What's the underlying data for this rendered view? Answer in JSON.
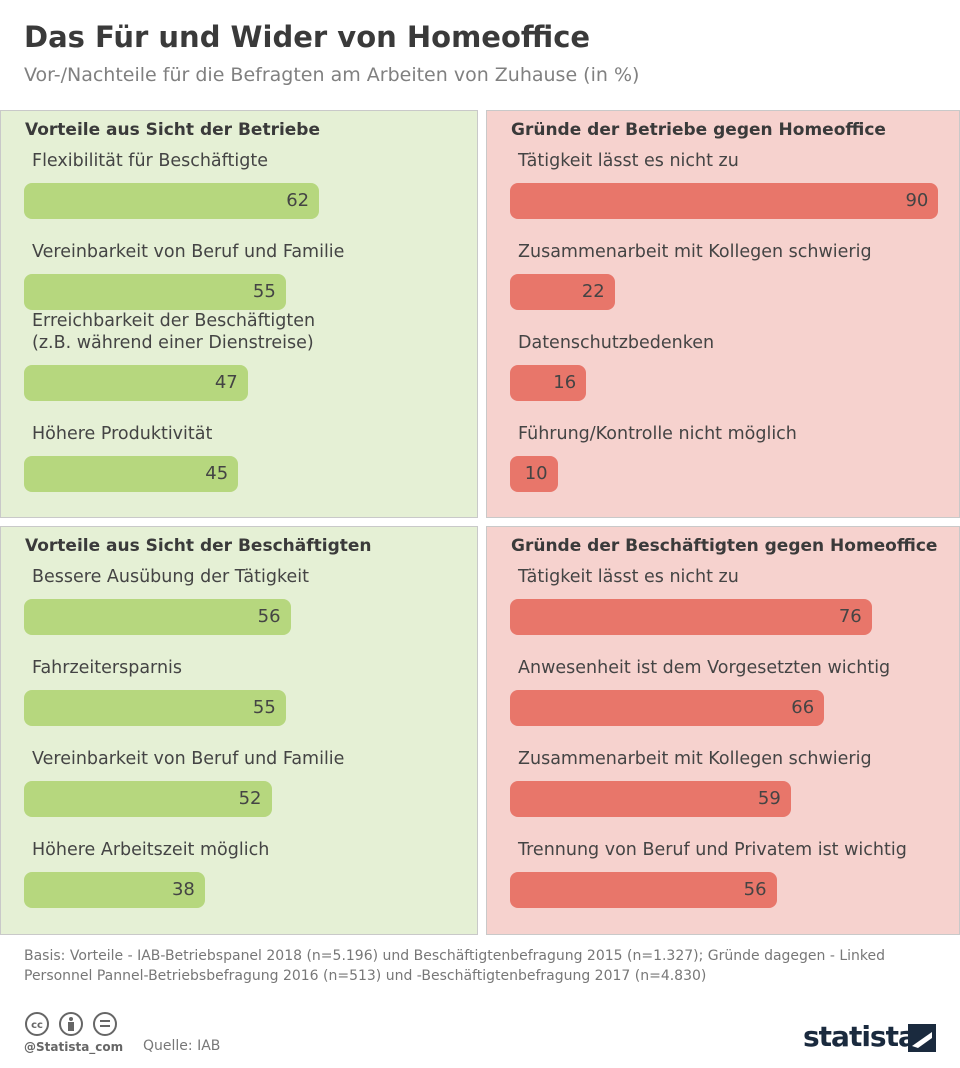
{
  "title": "Das Für und Wider von Homeoffice",
  "subtitle": "Vor-/Nachteile für die Befragten am Arbeiten von Zuhause (in %)",
  "note": "Basis: Vorteile - IAB-Betriebspanel 2018 (n=5.196) und Beschäftigtenbefragung 2015 (n=1.327); Gründe dagegen - Linked Personnel Pannel-Betriebsbefragung 2016 (n=513) und -Beschäftigtenbefragung 2017 (n=4.830)",
  "handle": "@Statista_com",
  "source": "Quelle: IAB",
  "logo": "statista",
  "chart_data": [
    {
      "type": "bar",
      "title": "Vorteile aus Sicht der Betriebe",
      "categories": [
        "Flexibilität für Beschäftigte",
        "Vereinbarkeit von Beruf und Familie",
        "Erreichbarkeit der Beschäftigten\n(z.B. während einer Dienstreise)",
        "Höhere Produktivität"
      ],
      "values": [
        62,
        55,
        47,
        45
      ],
      "color": "#b6d77e"
    },
    {
      "type": "bar",
      "title": "Gründe der Betriebe gegen Homeoffice",
      "categories": [
        "Tätigkeit lässt es nicht zu",
        "Zusammenarbeit mit Kollegen schwierig",
        "Datenschutzbedenken",
        "Führung/Kontrolle nicht möglich"
      ],
      "values": [
        90,
        22,
        16,
        10
      ],
      "color": "#e8766a"
    },
    {
      "type": "bar",
      "title": "Vorteile aus Sicht der Beschäftigten",
      "categories": [
        "Bessere Ausübung der Tätigkeit",
        "Fahrzeitersparnis",
        "Vereinbarkeit von Beruf und Familie",
        "Höhere Arbeitszeit möglich"
      ],
      "values": [
        56,
        55,
        52,
        38
      ],
      "color": "#b6d77e"
    },
    {
      "type": "bar",
      "title": "Gründe der Beschäftigten gegen Homeoffice",
      "categories": [
        "Tätigkeit lässt es nicht zu",
        "Anwesenheit ist dem Vorgesetzten wichtig",
        "Zusammenarbeit mit Kollegen schwierig",
        "Trennung von Beruf und Privatem ist wichtig"
      ],
      "values": [
        76,
        66,
        59,
        56
      ],
      "color": "#e8766a"
    }
  ]
}
